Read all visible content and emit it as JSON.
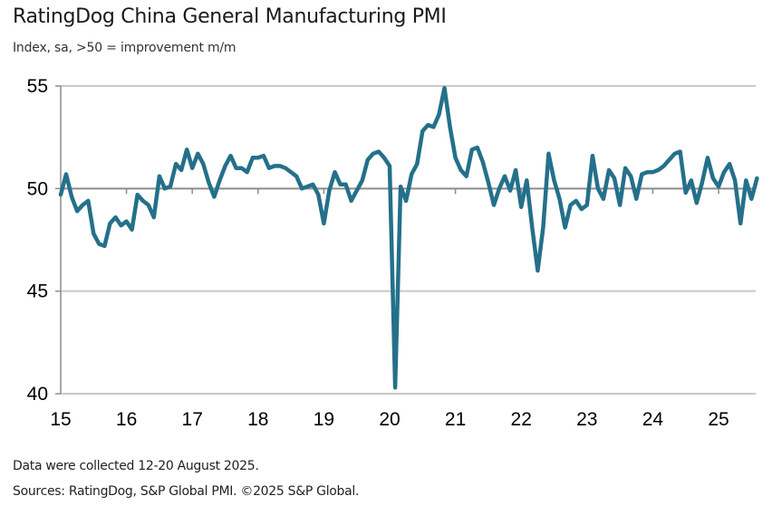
{
  "chart_data": {
    "type": "line",
    "title": "RatingDog China General Manufacturing PMI",
    "subtitle": "Index, sa, >50 = improvement m/m",
    "xlabel": "",
    "ylabel": "",
    "ylim": [
      40,
      55
    ],
    "yticks": [
      "55",
      "50",
      "45",
      "40"
    ],
    "ytick_values": [
      55,
      50,
      45,
      40
    ],
    "reference_line": 50,
    "xticks": [
      "15",
      "16",
      "17",
      "18",
      "19",
      "20",
      "21",
      "22",
      "23",
      "24",
      "25"
    ],
    "x_start": "2015-01",
    "x_end": "2025-07",
    "frequency": "monthly",
    "grid": "horizontal",
    "legend": "none",
    "series": [
      {
        "name": "RatingDog China General Manufacturing PMI",
        "color": "#24708A",
        "values": [
          49.7,
          50.7,
          49.6,
          48.9,
          49.2,
          49.4,
          47.8,
          47.3,
          47.2,
          48.3,
          48.6,
          48.2,
          48.4,
          48.0,
          49.7,
          49.4,
          49.2,
          48.6,
          50.6,
          50.0,
          50.1,
          51.2,
          50.9,
          51.9,
          51.0,
          51.7,
          51.2,
          50.3,
          49.6,
          50.4,
          51.1,
          51.6,
          51.0,
          51.0,
          50.8,
          51.5,
          51.5,
          51.6,
          51.0,
          51.1,
          51.1,
          51.0,
          50.8,
          50.6,
          50.0,
          50.1,
          50.2,
          49.7,
          48.3,
          49.9,
          50.8,
          50.2,
          50.2,
          49.4,
          49.9,
          50.4,
          51.4,
          51.7,
          51.8,
          51.5,
          51.1,
          40.3,
          50.1,
          49.4,
          50.7,
          51.2,
          52.8,
          53.1,
          53.0,
          53.6,
          54.9,
          53.0,
          51.5,
          50.9,
          50.6,
          51.9,
          52.0,
          51.3,
          50.3,
          49.2,
          50.0,
          50.6,
          49.9,
          50.9,
          49.1,
          50.4,
          48.1,
          46.0,
          48.1,
          51.7,
          50.4,
          49.5,
          48.1,
          49.2,
          49.4,
          49.0,
          49.2,
          51.6,
          50.0,
          49.5,
          50.9,
          50.5,
          49.2,
          51.0,
          50.6,
          49.5,
          50.7,
          50.8,
          50.8,
          50.9,
          51.1,
          51.4,
          51.7,
          51.8,
          49.8,
          50.4,
          49.3,
          50.3,
          51.5,
          50.5,
          50.1,
          50.8,
          51.2,
          50.4,
          48.3,
          50.4,
          49.5,
          50.5
        ]
      }
    ]
  },
  "footer": {
    "note": "Data were collected 12-20 August 2025.",
    "sources": "Sources: RatingDog, S&P Global PMI. ©2025 S&P Global."
  }
}
